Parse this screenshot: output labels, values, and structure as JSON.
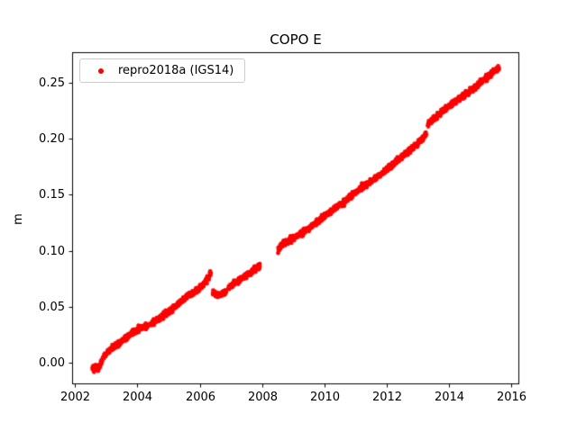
{
  "figure": {
    "title": "COPO E",
    "ylabel": "m",
    "background": "#ffffff"
  },
  "legend": {
    "label": "repro2018a (IGS14)",
    "marker_color": "#ff0000"
  },
  "chart_data": {
    "type": "scatter",
    "title": "COPO E",
    "xlabel": "",
    "ylabel": "m",
    "grid": false,
    "legend_position": "upper left",
    "xlim": [
      2001.9,
      2016.27
    ],
    "ylim": [
      -0.0195,
      0.2775
    ],
    "xticks": {
      "values": [
        2002,
        2004,
        2006,
        2008,
        2010,
        2012,
        2014,
        2016
      ],
      "labels": [
        "2002",
        "2004",
        "2006",
        "2008",
        "2010",
        "2012",
        "2014",
        "2016"
      ]
    },
    "yticks": {
      "values": [
        0.0,
        0.05,
        0.1,
        0.15,
        0.2,
        0.25
      ],
      "labels": [
        "0.00",
        "0.05",
        "0.10",
        "0.15",
        "0.20",
        "0.25"
      ]
    },
    "series": [
      {
        "name": "repro2018a (IGS14)",
        "color": "#ff0000",
        "marker": "dot",
        "segments": [
          [
            [
              2002.55,
              -0.004
            ],
            [
              2002.65,
              -0.005
            ],
            [
              2002.75,
              -0.006
            ],
            [
              2002.85,
              0.002
            ],
            [
              2003.0,
              0.008
            ],
            [
              2003.15,
              0.012
            ],
            [
              2003.3,
              0.015
            ],
            [
              2003.5,
              0.019
            ],
            [
              2003.7,
              0.023
            ],
            [
              2003.9,
              0.028
            ],
            [
              2004.1,
              0.031
            ],
            [
              2004.3,
              0.033
            ],
            [
              2004.5,
              0.036
            ],
            [
              2004.7,
              0.039
            ],
            [
              2004.9,
              0.043
            ],
            [
              2005.1,
              0.047
            ],
            [
              2005.3,
              0.052
            ],
            [
              2005.5,
              0.057
            ],
            [
              2005.7,
              0.061
            ],
            [
              2005.9,
              0.064
            ],
            [
              2006.05,
              0.068
            ],
            [
              2006.2,
              0.073
            ],
            [
              2006.3,
              0.077
            ],
            [
              2006.36,
              0.08
            ]
          ],
          [
            [
              2006.42,
              0.062
            ],
            [
              2006.55,
              0.06
            ],
            [
              2006.7,
              0.061
            ],
            [
              2006.85,
              0.063
            ]
          ],
          [
            [
              2006.92,
              0.066
            ],
            [
              2007.1,
              0.07
            ],
            [
              2007.3,
              0.074
            ],
            [
              2007.5,
              0.078
            ],
            [
              2007.7,
              0.082
            ],
            [
              2007.93,
              0.086
            ]
          ],
          [
            [
              2008.52,
              0.1
            ],
            [
              2008.62,
              0.105
            ],
            [
              2008.8,
              0.108
            ],
            [
              2009.0,
              0.111
            ],
            [
              2009.25,
              0.115
            ],
            [
              2009.5,
              0.12
            ],
            [
              2009.75,
              0.125
            ],
            [
              2010.0,
              0.131
            ],
            [
              2010.25,
              0.136
            ],
            [
              2010.5,
              0.141
            ],
            [
              2010.75,
              0.146
            ],
            [
              2011.0,
              0.152
            ],
            [
              2011.25,
              0.157
            ],
            [
              2011.5,
              0.162
            ],
            [
              2011.75,
              0.167
            ],
            [
              2012.0,
              0.172
            ],
            [
              2012.25,
              0.178
            ],
            [
              2012.5,
              0.184
            ],
            [
              2012.75,
              0.19
            ],
            [
              2013.0,
              0.196
            ],
            [
              2013.15,
              0.2
            ],
            [
              2013.28,
              0.204
            ]
          ],
          [
            [
              2013.33,
              0.213
            ],
            [
              2013.5,
              0.218
            ],
            [
              2013.7,
              0.222
            ],
            [
              2013.9,
              0.227
            ],
            [
              2014.1,
              0.231
            ],
            [
              2014.3,
              0.235
            ],
            [
              2014.5,
              0.239
            ],
            [
              2014.7,
              0.243
            ],
            [
              2014.9,
              0.247
            ],
            [
              2015.1,
              0.252
            ],
            [
              2015.3,
              0.257
            ],
            [
              2015.5,
              0.261
            ],
            [
              2015.62,
              0.263
            ]
          ]
        ]
      }
    ],
    "point_spacing_years": 0.006,
    "noise_sigma": 0.0012,
    "marker_radius_px": 2.4
  }
}
